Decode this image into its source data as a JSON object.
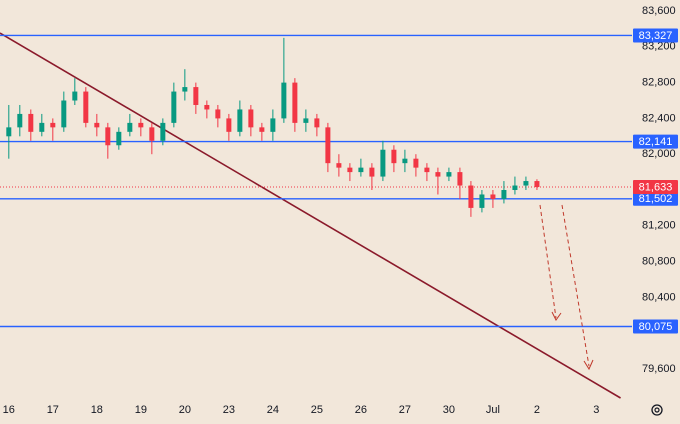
{
  "chart_data": {
    "type": "candlestick",
    "x": [
      0,
      0.25,
      0.5,
      0.75,
      1,
      1.25,
      1.5,
      1.75,
      2,
      2.25,
      2.5,
      2.75,
      3,
      3.25,
      3.5,
      3.75,
      4,
      4.25,
      4.5,
      4.75,
      5,
      5.25,
      5.5,
      5.75,
      6,
      6.25,
      6.5,
      6.75,
      7,
      7.25,
      7.5,
      7.75,
      8,
      8.25,
      8.5,
      8.75,
      9,
      9.25,
      9.5,
      9.75,
      10,
      10.25,
      10.5,
      10.75,
      11,
      11.25,
      11.5,
      11.75,
      12
    ],
    "open": [
      82200,
      82300,
      82450,
      82250,
      82350,
      82300,
      82600,
      82700,
      82350,
      82300,
      82100,
      82250,
      82350,
      82300,
      82150,
      82350,
      82700,
      82750,
      82550,
      82500,
      82400,
      82250,
      82500,
      82300,
      82250,
      82400,
      82800,
      82350,
      82400,
      82300,
      81900,
      81850,
      81800,
      81850,
      81750,
      82050,
      81900,
      81950,
      81850,
      81800,
      81750,
      81800,
      81650,
      81400,
      81550,
      81500,
      81600,
      81650,
      81700
    ],
    "high": [
      82550,
      82550,
      82500,
      82450,
      82400,
      82700,
      82850,
      82750,
      82450,
      82350,
      82300,
      82450,
      82400,
      82350,
      82400,
      82800,
      82950,
      82800,
      82600,
      82550,
      82450,
      82600,
      82550,
      82350,
      82500,
      83300,
      82850,
      82500,
      82450,
      82350,
      82000,
      81900,
      81950,
      81900,
      82150,
      82100,
      82050,
      82000,
      81900,
      81850,
      81850,
      81850,
      81700,
      81600,
      81600,
      81700,
      81750,
      81750,
      81720
    ],
    "low": [
      81950,
      82200,
      82150,
      82200,
      82150,
      82250,
      82550,
      82300,
      82200,
      81950,
      82050,
      82200,
      82200,
      82000,
      82100,
      82300,
      82600,
      82450,
      82400,
      82300,
      82150,
      82200,
      82200,
      82150,
      82150,
      82350,
      82250,
      82250,
      82200,
      81800,
      81750,
      81700,
      81750,
      81600,
      81700,
      81800,
      81800,
      81750,
      81700,
      81550,
      81700,
      81500,
      81300,
      81350,
      81400,
      81450,
      81550,
      81600,
      81600
    ],
    "close": [
      82300,
      82450,
      82250,
      82350,
      82300,
      82600,
      82700,
      82350,
      82300,
      82100,
      82250,
      82350,
      82300,
      82150,
      82350,
      82700,
      82750,
      82550,
      82500,
      82400,
      82250,
      82500,
      82300,
      82250,
      82400,
      82800,
      82350,
      82400,
      82300,
      81900,
      81850,
      81800,
      81850,
      81750,
      82050,
      81900,
      81950,
      81850,
      81800,
      81750,
      81800,
      81650,
      81400,
      81550,
      81500,
      81600,
      81650,
      81700,
      81633
    ],
    "up_color": "#089981",
    "down_color": "#f23645",
    "xlim": [
      -0.2,
      14.16
    ],
    "xticks": [
      {
        "value": 0,
        "label": "16"
      },
      {
        "value": 1,
        "label": "17"
      },
      {
        "value": 2,
        "label": "18"
      },
      {
        "value": 3,
        "label": "19"
      },
      {
        "value": 4,
        "label": "20"
      },
      {
        "value": 5,
        "label": "23"
      },
      {
        "value": 6,
        "label": "24"
      },
      {
        "value": 7,
        "label": "25"
      },
      {
        "value": 8,
        "label": "26"
      },
      {
        "value": 9,
        "label": "27"
      },
      {
        "value": 10,
        "label": "30"
      },
      {
        "value": 11,
        "label": "Jul"
      },
      {
        "value": 12,
        "label": "2"
      },
      {
        "value": 13.35,
        "label": "3"
      }
    ],
    "ylim": [
      79276,
      83723
    ],
    "yticks": [
      {
        "value": 83600,
        "label": "83,600"
      },
      {
        "value": 83200,
        "label": "83,200"
      },
      {
        "value": 82800,
        "label": "82,800"
      },
      {
        "value": 82400,
        "label": "82,400"
      },
      {
        "value": 82000,
        "label": "82,000"
      },
      {
        "value": 81200,
        "label": "81,200"
      },
      {
        "value": 80800,
        "label": "80,800"
      },
      {
        "value": 80400,
        "label": "80,400"
      },
      {
        "value": 79600,
        "label": "79,600"
      }
    ],
    "levels": {
      "values": [
        83327,
        82141,
        81502,
        80075
      ],
      "value_labels": [
        "83,327",
        "82,141",
        "81,502",
        "80,075"
      ],
      "color": "#2962ff"
    },
    "last_price": {
      "value": 81633,
      "label": "81,633",
      "color": "#f23645"
    },
    "trendline": {
      "x": [
        -0.2,
        13.9
      ],
      "values": [
        83354,
        79276
      ],
      "color": "#8b1a2b"
    },
    "grid": false
  }
}
